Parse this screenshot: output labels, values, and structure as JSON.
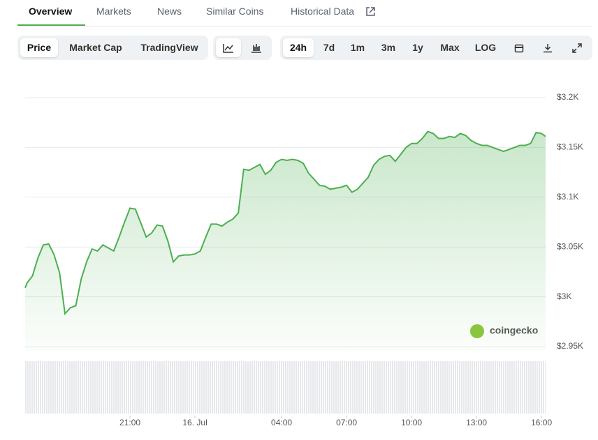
{
  "tabs": [
    "Overview",
    "Markets",
    "News",
    "Similar Coins",
    "Historical Data"
  ],
  "chart_types": [
    "Price",
    "Market Cap",
    "TradingView"
  ],
  "ranges": [
    "24h",
    "7d",
    "1m",
    "3m",
    "1y",
    "Max",
    "LOG"
  ],
  "chart_data": {
    "type": "line",
    "color": "#4caf50",
    "area": true,
    "grid": true,
    "watermark": "coingecko",
    "x": [
      -7.84,
      -7.75,
      -7.5,
      -7.25,
      -7.0,
      -6.75,
      -6.5,
      -6.25,
      -6.0,
      -5.75,
      -5.5,
      -5.25,
      -5.0,
      -4.75,
      -4.5,
      -4.25,
      -4.0,
      -3.75,
      -3.5,
      -3.25,
      -3.0,
      -2.75,
      -2.5,
      -2.25,
      -2.0,
      -1.75,
      -1.5,
      -1.25,
      -1.0,
      -0.75,
      -0.5,
      -0.25,
      0,
      0.25,
      0.5,
      0.75,
      1.0,
      1.25,
      1.5,
      1.75,
      2.0,
      2.25,
      2.5,
      2.75,
      3.0,
      3.25,
      3.5,
      3.75,
      4.0,
      4.25,
      4.5,
      4.75,
      5.0,
      5.25,
      5.5,
      5.75,
      6.0,
      6.25,
      6.5,
      6.75,
      7.0,
      7.25,
      7.5,
      7.75,
      8.0,
      8.25,
      8.5,
      8.75,
      9.0,
      9.25,
      9.5,
      9.75,
      10.0,
      10.25,
      10.5,
      10.75,
      11.0,
      11.25,
      11.5,
      11.75,
      12.0,
      12.25,
      12.5,
      12.75,
      13.0,
      13.25,
      13.5,
      13.75,
      14.0,
      14.25,
      14.5,
      14.75,
      15.0,
      15.25,
      15.5,
      15.75,
      16.0,
      16.19
    ],
    "values": [
      3009,
      3014,
      3021,
      3039,
      3052,
      3053,
      3042,
      3024,
      2983,
      2989,
      2991,
      3018,
      3035,
      3048,
      3046,
      3052,
      3049,
      3046,
      3060,
      3075,
      3089,
      3088,
      3074,
      3060,
      3064,
      3072,
      3071,
      3056,
      3035,
      3041,
      3042,
      3042,
      3043,
      3046,
      3060,
      3073,
      3073,
      3071,
      3075,
      3078,
      3084,
      3128,
      3127,
      3130,
      3133,
      3123,
      3127,
      3135,
      3138,
      3137,
      3138,
      3137,
      3134,
      3124,
      3118,
      3112,
      3111,
      3108,
      3109,
      3110,
      3112,
      3105,
      3108,
      3114,
      3120,
      3132,
      3138,
      3141,
      3142,
      3136,
      3143,
      3150,
      3154,
      3154,
      3159,
      3166,
      3164,
      3159,
      3159,
      3161,
      3160,
      3164,
      3162,
      3157,
      3154,
      3152,
      3152,
      3150,
      3148,
      3146,
      3148,
      3150,
      3152,
      3152,
      3154,
      3165,
      3164,
      3161
    ],
    "xlim": [
      -7.84,
      16.19
    ],
    "xticks": [
      {
        "value": -3,
        "label": "21:00"
      },
      {
        "value": 0,
        "label": "16. Jul"
      },
      {
        "value": 4,
        "label": "04:00"
      },
      {
        "value": 7,
        "label": "07:00"
      },
      {
        "value": 10,
        "label": "10:00"
      },
      {
        "value": 13,
        "label": "13:00"
      },
      {
        "value": 16,
        "label": "16:00"
      }
    ],
    "ylim": [
      2950,
      3200
    ],
    "yticks": [
      {
        "value": 3200,
        "label": "$3.2K"
      },
      {
        "value": 3150,
        "label": "$3.15K"
      },
      {
        "value": 3100,
        "label": "$3.1K"
      },
      {
        "value": 3050,
        "label": "$3.05K"
      },
      {
        "value": 3000,
        "label": "$3K"
      },
      {
        "value": 2950,
        "label": "$2.95K"
      }
    ]
  }
}
